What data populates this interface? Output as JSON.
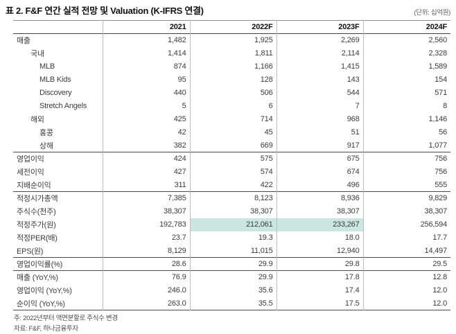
{
  "title": "표 2. F&F 연간 실적 전망 및 Valuation (K-IFRS 연결)",
  "unit_label": "(단위: 십억원)",
  "table": {
    "columns": [
      "",
      "2021",
      "2022F",
      "2023F",
      "2024F"
    ],
    "sections": [
      {
        "rows": [
          {
            "label": "매출",
            "indent": 0,
            "values": [
              "1,482",
              "1,925",
              "2,269",
              "2,560"
            ]
          },
          {
            "label": "국내",
            "indent": 1,
            "values": [
              "1,414",
              "1,811",
              "2,114",
              "2,328"
            ]
          },
          {
            "label": "MLB",
            "indent": 2,
            "values": [
              "874",
              "1,166",
              "1,415",
              "1,589"
            ]
          },
          {
            "label": "MLB Kids",
            "indent": 2,
            "values": [
              "95",
              "128",
              "143",
              "154"
            ]
          },
          {
            "label": "Discovery",
            "indent": 2,
            "values": [
              "440",
              "506",
              "544",
              "571"
            ]
          },
          {
            "label": "Stretch Angels",
            "indent": 2,
            "values": [
              "5",
              "6",
              "7",
              "8"
            ]
          },
          {
            "label": "해외",
            "indent": 1,
            "values": [
              "425",
              "714",
              "968",
              "1,146"
            ]
          },
          {
            "label": "홍콩",
            "indent": 2,
            "values": [
              "42",
              "45",
              "51",
              "56"
            ]
          },
          {
            "label": "상해",
            "indent": 2,
            "values": [
              "382",
              "669",
              "917",
              "1,077"
            ]
          }
        ]
      },
      {
        "rows": [
          {
            "label": "영업이익",
            "indent": 0,
            "values": [
              "424",
              "575",
              "675",
              "756"
            ]
          },
          {
            "label": "세전이익",
            "indent": 0,
            "values": [
              "427",
              "574",
              "674",
              "756"
            ]
          },
          {
            "label": "지배순이익",
            "indent": 0,
            "values": [
              "311",
              "422",
              "496",
              "555"
            ]
          }
        ]
      },
      {
        "rows": [
          {
            "label": "적정시가총액",
            "indent": 0,
            "values": [
              "7,385",
              "8,123",
              "8,936",
              "9,829"
            ]
          },
          {
            "label": "주식수(천주)",
            "indent": 0,
            "values": [
              "38,307",
              "38,307",
              "38,307",
              "38,307"
            ]
          },
          {
            "label": "적정주가(원)",
            "indent": 0,
            "values": [
              "192,783",
              "212,061",
              "233,267",
              "256,594"
            ],
            "highlight_cols": [
              1,
              2
            ]
          },
          {
            "label": "적정PER(배)",
            "indent": 0,
            "values": [
              "23.7",
              "19.3",
              "18.0",
              "17.7"
            ]
          },
          {
            "label": "EPS(원)",
            "indent": 0,
            "values": [
              "8,129",
              "11,015",
              "12,940",
              "14,497"
            ]
          }
        ]
      },
      {
        "rows": [
          {
            "label": "영업이익률(%)",
            "indent": 0,
            "values": [
              "28.6",
              "29.9",
              "29.8",
              "29.5"
            ]
          }
        ]
      },
      {
        "rows": [
          {
            "label": "매출 (YoY,%)",
            "indent": 0,
            "values": [
              "76.9",
              "29.9",
              "17.8",
              "12.8"
            ]
          },
          {
            "label": "영업이익 (YoY,%)",
            "indent": 0,
            "values": [
              "246.0",
              "35.6",
              "17.4",
              "12.0"
            ]
          },
          {
            "label": "순이익 (YoY,%)",
            "indent": 0,
            "values": [
              "263.0",
              "35.5",
              "17.5",
              "12.0"
            ]
          }
        ]
      }
    ]
  },
  "notes": [
    "주: 2022년부터 액면분할로 주식수 변경",
    "자료: F&F, 하나금융투자"
  ],
  "colors": {
    "highlight_cell": "#c9e6e1",
    "section_line": "#4a4a4a",
    "column_line": "#bcbcbc",
    "text": "#3a3a3a"
  }
}
